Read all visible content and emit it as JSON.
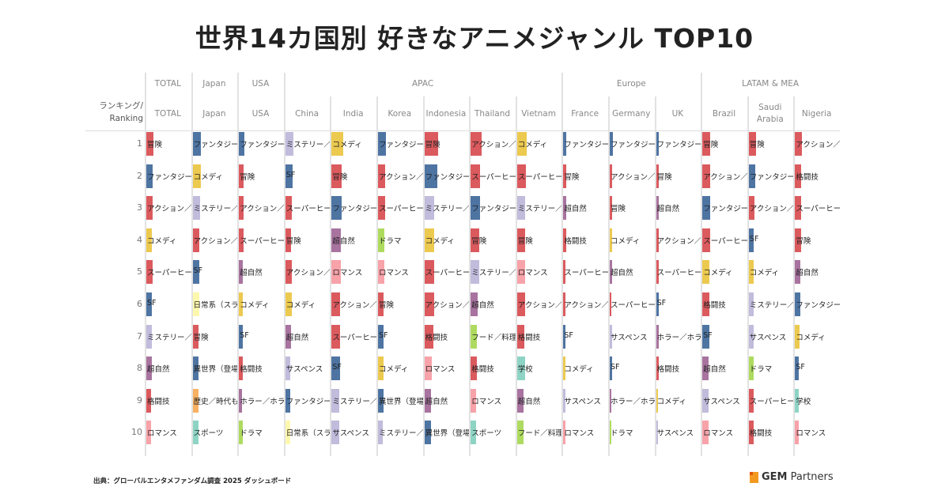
{
  "title": "世界14カ国別 好きなアニメジャンル TOP10",
  "row_header": [
    "ランキング/",
    "Ranking"
  ],
  "footer": "出典：グローバルエンタメファンダム調査 2025 ダッシュボード",
  "logo": {
    "mark": "GEM",
    "rest": " Partners"
  },
  "colors": {
    "冒険": "#db5a5e",
    "アクション／対": "#db5a5e",
    "スーパーヒーロ": "#db5a5e",
    "格闘技": "#db5a5e",
    "ファンタジー": "#4e74a2",
    "SF": "#4e74a2",
    "異世界（登場人物": "#4e74a2",
    "コメディ": "#ecc94f",
    "ミステリー／探": "#c1bbdc",
    "サスペンス": "#c1bbdc",
    "超自然": "#a8739f",
    "ホラー／ホラー": "#a8739f",
    "ロマンス": "#f8a2a9",
    "日常系（スライス": "#fdf8ae",
    "歴史／時代もの": "#f8b062",
    "スポーツ": "#8ed4c5",
    "学校": "#8ed4c5",
    "ドラマ": "#aedb5f",
    "フード／料理": "#aedb5f"
  },
  "chart_data": {
    "type": "table",
    "title": "世界14カ国別 好きなアニメジャンル TOP10",
    "ranks": [
      "1",
      "2",
      "3",
      "4",
      "5",
      "6",
      "7",
      "8",
      "9",
      "10"
    ],
    "bar_scale_max": 17,
    "groups": [
      {
        "name": "TOTAL",
        "span": 1
      },
      {
        "name": "Japan",
        "span": 1
      },
      {
        "name": "USA",
        "span": 1
      },
      {
        "name": "APAC",
        "span": 6
      },
      {
        "name": "Europe",
        "span": 3
      },
      {
        "name": "LATAM & MEA",
        "span": 3
      }
    ],
    "columns": [
      {
        "name": "TOTAL",
        "genres": [
          "冒険",
          "ファンタジー",
          "アクション／対",
          "コメディ",
          "スーパーヒーロ",
          "SF",
          "ミステリー／探",
          "超自然",
          "格闘技",
          "ロマンス"
        ],
        "levels": [
          9,
          8,
          8,
          7,
          8,
          7,
          7,
          7,
          6,
          6
        ]
      },
      {
        "name": "Japan",
        "genres": [
          "ファンタジー",
          "コメディ",
          "ミステリー／探",
          "アクション／対",
          "SF",
          "日常系（スライス",
          "冒険",
          "異世界（登場人物",
          "歴史／時代もの",
          "スポーツ"
        ],
        "levels": [
          10,
          10,
          9,
          8,
          8,
          8,
          7,
          7,
          7,
          7
        ]
      },
      {
        "name": "USA",
        "genres": [
          "ファンタジー",
          "冒険",
          "アクション／対",
          "スーパーヒーロ",
          "超自然",
          "コメディ",
          "SF",
          "格闘技",
          "ホラー／ホラー",
          "ドラマ"
        ],
        "levels": [
          7,
          6,
          6,
          6,
          5,
          5,
          5,
          5,
          4,
          5
        ]
      },
      {
        "name": "China",
        "genres": [
          "ミステリー／探",
          "SF",
          "スーパーヒーロ",
          "冒険",
          "アクション／対",
          "コメディ",
          "超自然",
          "サスペンス",
          "ファンタジー",
          "日常系（スライス"
        ],
        "levels": [
          10,
          9,
          8,
          7,
          8,
          8,
          7,
          6,
          6,
          6
        ]
      },
      {
        "name": "India",
        "genres": [
          "コメディ",
          "冒険",
          "ファンタジー",
          "超自然",
          "ロマンス",
          "アクション／対",
          "スーパーヒーロ",
          "SF",
          "ミステリー／探",
          "サスペンス"
        ],
        "levels": [
          15,
          13,
          13,
          12,
          12,
          11,
          11,
          11,
          10,
          10
        ]
      },
      {
        "name": "Korea",
        "genres": [
          "ファンタジー",
          "アクション／対",
          "スーパーヒーロ",
          "ドラマ",
          "ロマンス",
          "冒険",
          "SF",
          "コメディ",
          "異世界（登場人物",
          "ミステリー／探"
        ],
        "levels": [
          10,
          9,
          9,
          8,
          8,
          7,
          7,
          7,
          7,
          6
        ]
      },
      {
        "name": "Indonesia",
        "genres": [
          "冒険",
          "ファンタジー",
          "ミステリー／探",
          "コメディ",
          "スーパーヒーロ",
          "アクション／対",
          "格闘技",
          "ロマンス",
          "超自然",
          "異世界（登場人物"
        ],
        "levels": [
          17,
          16,
          12,
          12,
          12,
          12,
          11,
          9,
          8,
          8
        ]
      },
      {
        "name": "Thailand",
        "genres": [
          "アクション／対",
          "スーパーヒーロ",
          "ファンタジー",
          "冒険",
          "ミステリー／探",
          "超自然",
          "フード／料理",
          "格闘技",
          "ロマンス",
          "スポーツ"
        ],
        "levels": [
          14,
          12,
          12,
          11,
          11,
          9,
          8,
          8,
          7,
          7
        ]
      },
      {
        "name": "Vietnam",
        "genres": [
          "コメディ",
          "スーパーヒーロ",
          "ミステリー／探",
          "冒険",
          "ロマンス",
          "アクション／対",
          "格闘技",
          "学校",
          "超自然",
          "フード／料理"
        ],
        "levels": [
          12,
          11,
          10,
          10,
          10,
          10,
          9,
          10,
          8,
          8
        ]
      },
      {
        "name": "France",
        "genres": [
          "ファンタジー",
          "冒険",
          "超自然",
          "格闘技",
          "スーパーヒーロ",
          "アクション／対",
          "SF",
          "コメディ",
          "サスペンス",
          "ロマンス"
        ],
        "levels": [
          4,
          4,
          4,
          4,
          3,
          3,
          3,
          3,
          3,
          3
        ]
      },
      {
        "name": "Germany",
        "genres": [
          "ファンタジー",
          "アクション／対",
          "冒険",
          "コメディ",
          "超自然",
          "スーパーヒーロ",
          "サスペンス",
          "SF",
          "ホラー／ホラー",
          "ドラマ"
        ],
        "levels": [
          4,
          3,
          3,
          3,
          3,
          2,
          3,
          3,
          2,
          2
        ]
      },
      {
        "name": "UK",
        "genres": [
          "ファンタジー",
          "冒険",
          "超自然",
          "アクション／対",
          "スーパーヒーロ",
          "SF",
          "ホラー／ホラー",
          "格闘技",
          "コメディ",
          "サスペンス"
        ],
        "levels": [
          3,
          3,
          3,
          3,
          3,
          3,
          3,
          3,
          2,
          2
        ]
      },
      {
        "name": "Brazil",
        "genres": [
          "冒険",
          "アクション／対",
          "ファンタジー",
          "スーパーヒーロ",
          "コメディ",
          "格闘技",
          "SF",
          "超自然",
          "サスペンス",
          "ロマンス"
        ],
        "levels": [
          10,
          10,
          10,
          10,
          9,
          9,
          9,
          8,
          8,
          8
        ]
      },
      {
        "name": "Saudi Arabia",
        "genres": [
          "冒険",
          "ファンタジー",
          "アクション／対",
          "SF",
          "コメディ",
          "ミステリー／探",
          "サスペンス",
          "ドラマ",
          "スーパーヒーロ",
          "格闘技"
        ],
        "levels": [
          9,
          8,
          7,
          6,
          6,
          6,
          6,
          6,
          6,
          6
        ]
      },
      {
        "name": "Nigeria",
        "genres": [
          "アクション／対",
          "格闘技",
          "スーパーヒーロ",
          "冒険",
          "超自然",
          "ファンタジー",
          "コメディ",
          "SF",
          "学校",
          "ロマンス"
        ],
        "levels": [
          9,
          8,
          8,
          8,
          7,
          7,
          6,
          5,
          5,
          5
        ]
      }
    ]
  }
}
